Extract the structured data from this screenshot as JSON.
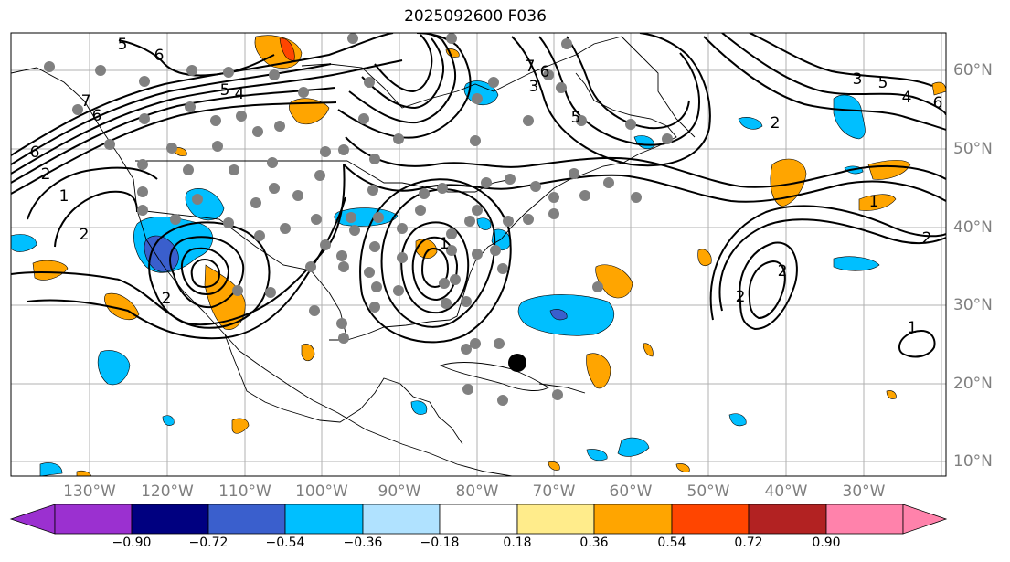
{
  "title": "2025092600 F036",
  "lat_labels": [
    "60°N",
    "50°N",
    "40°N",
    "30°N",
    "20°N",
    "10°N"
  ],
  "lon_labels": [
    "130°W",
    "120°W",
    "110°W",
    "100°W",
    "90°W",
    "80°W",
    "70°W",
    "60°W",
    "50°W",
    "40°W",
    "30°W"
  ],
  "contour_labels": [
    "5",
    "6",
    "6",
    "5",
    "4",
    "7",
    "6",
    "5",
    "3",
    "7",
    "6",
    "2",
    "5",
    "4",
    "3",
    "2",
    "1",
    "2",
    "2",
    "1",
    "2",
    "2",
    "2",
    "1",
    "6",
    "1"
  ],
  "colorbar": {
    "colors": [
      "#9b30d0",
      "#000080",
      "#3a5fcd",
      "#00bfff",
      "#b0e2ff",
      "#ffffff",
      "#ffec8b",
      "#ffa500",
      "#ff4500",
      "#b22222",
      "#ff82ab"
    ],
    "ticks": [
      "−0.90",
      "−0.72",
      "−0.54",
      "−0.36",
      "−0.18",
      "0.18",
      "0.36",
      "0.54",
      "0.72",
      "0.90"
    ]
  }
}
